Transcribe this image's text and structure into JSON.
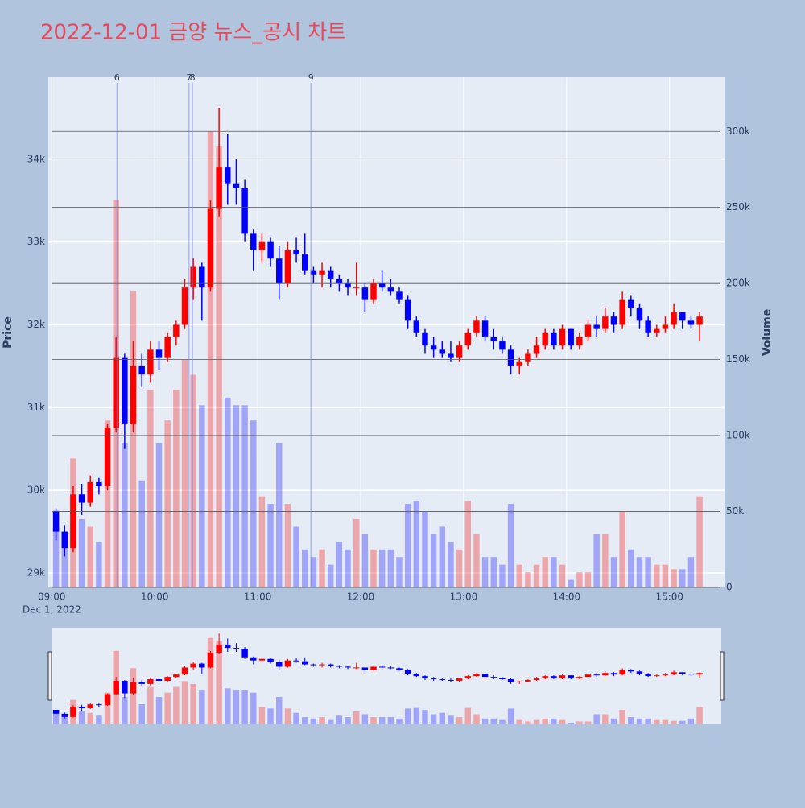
{
  "chart_data": {
    "type": "candlestick",
    "title": "2022-12-01 금양 뉴스_공시 차트",
    "y_label": "Price",
    "y2_label": "Volume",
    "x_date_label": "Dec 1, 2022",
    "increasing_color": "#ff0000",
    "decreasing_color": "#0000ff",
    "x": [
      "2022-12-01 09:00",
      "2022-12-01 09:05",
      "2022-12-01 09:10",
      "2022-12-01 09:15",
      "2022-12-01 09:20",
      "2022-12-01 09:25",
      "2022-12-01 09:30",
      "2022-12-01 09:35",
      "2022-12-01 09:40",
      "2022-12-01 09:45",
      "2022-12-01 09:50",
      "2022-12-01 09:55",
      "2022-12-01 10:00",
      "2022-12-01 10:05",
      "2022-12-01 10:10",
      "2022-12-01 10:15",
      "2022-12-01 10:20",
      "2022-12-01 10:25",
      "2022-12-01 10:30",
      "2022-12-01 10:35",
      "2022-12-01 10:40",
      "2022-12-01 10:45",
      "2022-12-01 10:50",
      "2022-12-01 10:55",
      "2022-12-01 11:00",
      "2022-12-01 11:05",
      "2022-12-01 11:10",
      "2022-12-01 11:15",
      "2022-12-01 11:20",
      "2022-12-01 11:25",
      "2022-12-01 11:30",
      "2022-12-01 11:35",
      "2022-12-01 11:40",
      "2022-12-01 11:45",
      "2022-12-01 11:50",
      "2022-12-01 11:55",
      "2022-12-01 12:00",
      "2022-12-01 12:05",
      "2022-12-01 12:10",
      "2022-12-01 12:15",
      "2022-12-01 12:20",
      "2022-12-01 12:25",
      "2022-12-01 12:30",
      "2022-12-01 12:35",
      "2022-12-01 12:40",
      "2022-12-01 12:45",
      "2022-12-01 12:50",
      "2022-12-01 12:55",
      "2022-12-01 13:00",
      "2022-12-01 13:05",
      "2022-12-01 13:10",
      "2022-12-01 13:15",
      "2022-12-01 13:20",
      "2022-12-01 13:25",
      "2022-12-01 13:30",
      "2022-12-01 13:35",
      "2022-12-01 13:40",
      "2022-12-01 13:45",
      "2022-12-01 13:50",
      "2022-12-01 13:55",
      "2022-12-01 14:00",
      "2022-12-01 14:05",
      "2022-12-01 14:10",
      "2022-12-01 14:15",
      "2022-12-01 14:20",
      "2022-12-01 14:25",
      "2022-12-01 14:30",
      "2022-12-01 14:35",
      "2022-12-01 14:40",
      "2022-12-01 14:45",
      "2022-12-01 14:50",
      "2022-12-01 14:55",
      "2022-12-01 15:00",
      "2022-12-01 15:05",
      "2022-12-01 15:10",
      "2022-12-01 15:15"
    ],
    "open": [
      29750,
      29500,
      29300,
      29950,
      29850,
      30100,
      30050,
      30750,
      31600,
      30800,
      31500,
      31400,
      31700,
      31600,
      31850,
      32000,
      32450,
      32700,
      32450,
      33400,
      33900,
      33700,
      33650,
      33100,
      32900,
      33000,
      32800,
      32500,
      32900,
      32850,
      32650,
      32600,
      32650,
      32550,
      32500,
      32450,
      32450,
      32300,
      32500,
      32450,
      32400,
      32300,
      32050,
      31900,
      31750,
      31700,
      31650,
      31600,
      31750,
      31900,
      32050,
      31850,
      31800,
      31700,
      31500,
      31550,
      31650,
      31750,
      31900,
      31750,
      31950,
      31750,
      31850,
      32000,
      31950,
      32100,
      32000,
      32300,
      32200,
      32050,
      31900,
      31950,
      32000,
      32150,
      32050,
      32000
    ],
    "high": [
      29780,
      29580,
      30050,
      30080,
      30180,
      30150,
      30800,
      31850,
      31650,
      31800,
      31650,
      31800,
      31800,
      31900,
      32050,
      32550,
      32800,
      32750,
      33500,
      34620,
      34300,
      34000,
      33750,
      33150,
      33100,
      33050,
      32950,
      33000,
      33050,
      33100,
      32700,
      32750,
      32700,
      32600,
      32550,
      32750,
      32500,
      32550,
      32650,
      32550,
      32450,
      32350,
      32100,
      31950,
      31850,
      31800,
      31800,
      31800,
      31950,
      32100,
      32100,
      31950,
      31850,
      31750,
      31600,
      31700,
      31850,
      31950,
      31950,
      32000,
      31950,
      31900,
      32050,
      32100,
      32200,
      32150,
      32400,
      32350,
      32250,
      32100,
      32000,
      32100,
      32250,
      32150,
      32100,
      32150
    ],
    "low": [
      29400,
      29200,
      29250,
      29700,
      29800,
      29950,
      30000,
      30700,
      30500,
      30700,
      31250,
      31300,
      31450,
      31550,
      31750,
      31950,
      32300,
      32050,
      32400,
      33300,
      33450,
      33450,
      33000,
      32650,
      32750,
      32700,
      32300,
      32450,
      32750,
      32600,
      32500,
      32450,
      32450,
      32400,
      32350,
      32350,
      32150,
      32250,
      32400,
      32350,
      32250,
      31950,
      31850,
      31650,
      31600,
      31600,
      31550,
      31550,
      31700,
      31850,
      31800,
      31700,
      31650,
      31400,
      31400,
      31500,
      31600,
      31700,
      31700,
      31700,
      31700,
      31700,
      31800,
      31850,
      31900,
      31900,
      31950,
      32100,
      31950,
      31850,
      31850,
      31900,
      31950,
      31950,
      31950,
      31800
    ],
    "close": [
      29500,
      29300,
      29950,
      29850,
      30100,
      30050,
      30750,
      31600,
      30800,
      31500,
      31400,
      31700,
      31600,
      31850,
      32000,
      32450,
      32700,
      32450,
      33400,
      33900,
      33700,
      33650,
      33100,
      32900,
      33000,
      32800,
      32500,
      32900,
      32850,
      32650,
      32600,
      32650,
      32550,
      32500,
      32450,
      32450,
      32300,
      32500,
      32450,
      32400,
      32300,
      32050,
      31900,
      31750,
      31700,
      31650,
      31600,
      31750,
      31900,
      32050,
      31850,
      31800,
      31700,
      31500,
      31550,
      31650,
      31750,
      31900,
      31750,
      31950,
      31750,
      31850,
      32000,
      31950,
      32100,
      32000,
      32300,
      32200,
      32050,
      31900,
      31950,
      32000,
      32150,
      32050,
      32000,
      32100
    ],
    "volume": [
      40000,
      30000,
      85000,
      45000,
      40000,
      30000,
      110000,
      255000,
      95000,
      195000,
      70000,
      130000,
      95000,
      110000,
      130000,
      150000,
      140000,
      120000,
      300000,
      290000,
      125000,
      120000,
      120000,
      110000,
      60000,
      55000,
      95000,
      55000,
      40000,
      25000,
      20000,
      25000,
      15000,
      30000,
      25000,
      45000,
      35000,
      25000,
      25000,
      25000,
      20000,
      55000,
      57000,
      50000,
      35000,
      40000,
      30000,
      25000,
      57000,
      35000,
      20000,
      20000,
      15000,
      55000,
      15000,
      10000,
      15000,
      20000,
      20000,
      15000,
      5000,
      10000,
      10000,
      35000,
      35000,
      20000,
      50000,
      25000,
      20000,
      20000,
      15000,
      15000,
      12000,
      12000,
      20000,
      60000
    ],
    "markers": [
      {
        "label": "6",
        "x": "2022-12-01 09:38"
      },
      {
        "label": "7",
        "x": "2022-12-01 10:20"
      },
      {
        "label": "8",
        "x": "2022-12-01 10:22"
      },
      {
        "label": "9",
        "x": "2022-12-01 11:31"
      }
    ],
    "xlim": [
      "2022-12-01 08:58",
      "2022-12-01 15:32"
    ],
    "xticks": [
      {
        "value": "2022-12-01 09:00",
        "label": "09:00"
      },
      {
        "value": "2022-12-01 10:00",
        "label": "10:00"
      },
      {
        "value": "2022-12-01 11:00",
        "label": "11:00"
      },
      {
        "value": "2022-12-01 12:00",
        "label": "12:00"
      },
      {
        "value": "2022-12-01 13:00",
        "label": "13:00"
      },
      {
        "value": "2022-12-01 14:00",
        "label": "14:00"
      },
      {
        "value": "2022-12-01 15:00",
        "label": "15:00"
      }
    ],
    "ylim": [
      28825,
      34990
    ],
    "yticks": [
      {
        "value": 29000,
        "label": "29k"
      },
      {
        "value": 30000,
        "label": "30k"
      },
      {
        "value": 31000,
        "label": "31k"
      },
      {
        "value": 32000,
        "label": "32k"
      },
      {
        "value": 33000,
        "label": "33k"
      },
      {
        "value": 34000,
        "label": "34k"
      }
    ],
    "y2lim": [
      0,
      335600
    ],
    "y2ticks": [
      0,
      {
        "value": 50000,
        "label": "50k"
      },
      {
        "value": 100000,
        "label": "100k"
      },
      {
        "value": 150000,
        "label": "150k"
      },
      {
        "value": 200000,
        "label": "200k"
      },
      {
        "value": 250000,
        "label": "250k"
      },
      {
        "value": 300000,
        "label": "300k"
      }
    ],
    "grid": true
  }
}
